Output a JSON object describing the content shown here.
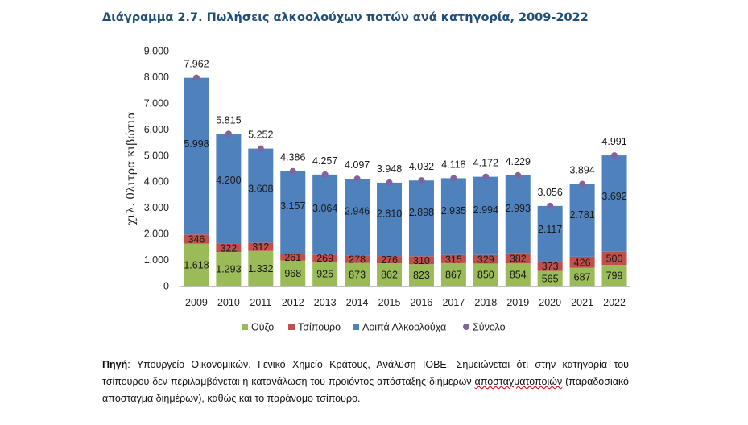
{
  "title": "Διάγραμμα 2.7. Πωλήσεις αλκοολούχων ποτών ανά κατηγορία, 2009-2022",
  "source": {
    "label": "Πηγή",
    "text_before": ": Υπουργείο Οικονομικών, Γενικό Χημείο Κράτους, Ανάλυση ΙΟΒΕ. Σημειώνεται ότι στην κατηγορία του τσίπουρου δεν περιλαμβάνεται η κατανάλωση του προϊόντος απόσταξης διήμερων ",
    "underlined_word": "αποσταγματοποιών",
    "text_after": " (παραδοσιακό απόσταγμα διημέρων), καθώς και το παράνομο τσίπουρο."
  },
  "chart_data": {
    "type": "bar",
    "stacked": true,
    "categories": [
      "2009",
      "2010",
      "2011",
      "2012",
      "2013",
      "2014",
      "2015",
      "2016",
      "2017",
      "2018",
      "2019",
      "2020",
      "2021",
      "2022"
    ],
    "ylabel": "χιλ. θλιτρα κιβώτια",
    "ylim": [
      0,
      9000
    ],
    "yticks": [
      "0",
      "1.000",
      "2.000",
      "3.000",
      "4.000",
      "5.000",
      "6.000",
      "7.000",
      "8.000",
      "9.000"
    ],
    "grid": false,
    "legend_position": "bottom",
    "series": [
      {
        "name": "Ούζο",
        "color": "#9bbb59",
        "values": [
          1618,
          1293,
          1332,
          968,
          925,
          873,
          862,
          823,
          867,
          850,
          854,
          565,
          687,
          799
        ],
        "labels": [
          "1.618",
          "1.293",
          "1.332",
          "968",
          "925",
          "873",
          "862",
          "823",
          "867",
          "850",
          "854",
          "565",
          "687",
          "799"
        ]
      },
      {
        "name": "Τσίπουρο",
        "color": "#c0504d",
        "values": [
          346,
          322,
          312,
          261,
          269,
          278,
          276,
          310,
          315,
          329,
          382,
          373,
          426,
          500
        ],
        "labels": [
          "346",
          "322",
          "312",
          "261",
          "269",
          "278",
          "276",
          "310",
          "315",
          "329",
          "382",
          "373",
          "426",
          "500"
        ]
      },
      {
        "name": "Λοιπά Αλκοολούχα",
        "color": "#4f81bd",
        "values": [
          5998,
          4200,
          3608,
          3157,
          3064,
          2946,
          2810,
          2898,
          2935,
          2994,
          2993,
          2117,
          2781,
          3692
        ],
        "labels": [
          "5.998",
          "4.200",
          "3.608",
          "3.157",
          "3.064",
          "2.946",
          "2.810",
          "2.898",
          "2.935",
          "2.994",
          "2.993",
          "2.117",
          "2.781",
          "3.692"
        ]
      }
    ],
    "total": {
      "name": "Σύνολο",
      "color": "#8064a2",
      "values": [
        7962,
        5815,
        5252,
        4386,
        4257,
        4097,
        3948,
        4032,
        4118,
        4172,
        4229,
        3056,
        3894,
        4991
      ],
      "labels": [
        "7.962",
        "5.815",
        "5.252",
        "4.386",
        "4.257",
        "4.097",
        "3.948",
        "4.032",
        "4.118",
        "4.172",
        "4.229",
        "3.056",
        "3.894",
        "4.991"
      ]
    }
  }
}
